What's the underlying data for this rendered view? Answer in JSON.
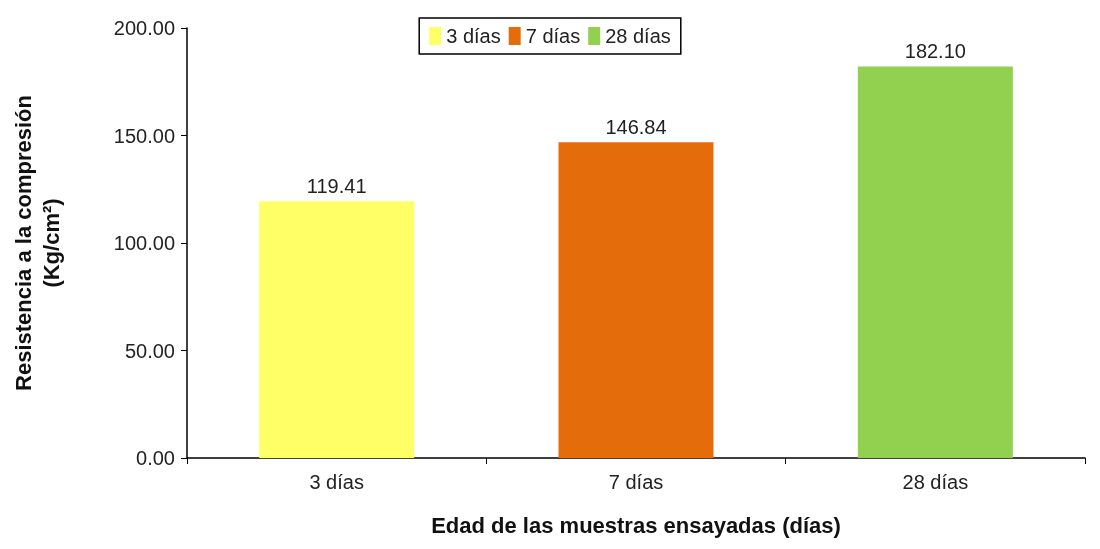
{
  "chart_data": {
    "type": "bar",
    "xlabel": "Edad de las muestras ensayadas (días)",
    "ylabel": "Resistencia a la compresión\n(Kg/cm²)",
    "categories": [
      "3 días",
      "7 días",
      "28 días"
    ],
    "series": [
      {
        "name": "3 días",
        "color": "#ffff66",
        "values": [
          119.41,
          null,
          null
        ],
        "value_labels": [
          "119.41",
          null,
          null
        ]
      },
      {
        "name": "7 días",
        "color": "#e46c0a",
        "values": [
          null,
          146.84,
          null
        ],
        "value_labels": [
          null,
          "146.84",
          null
        ]
      },
      {
        "name": "28 días",
        "color": "#92d050",
        "values": [
          null,
          null,
          182.1
        ],
        "value_labels": [
          null,
          null,
          "182.10"
        ]
      }
    ],
    "ylim": [
      0,
      200
    ],
    "yticks": [
      {
        "value": 0,
        "label": "0.00"
      },
      {
        "value": 50,
        "label": "50.00"
      },
      {
        "value": 100,
        "label": "100.00"
      },
      {
        "value": 150,
        "label": "150.00"
      },
      {
        "value": 200,
        "label": "200.00"
      }
    ],
    "grid": false,
    "legend": "top"
  }
}
